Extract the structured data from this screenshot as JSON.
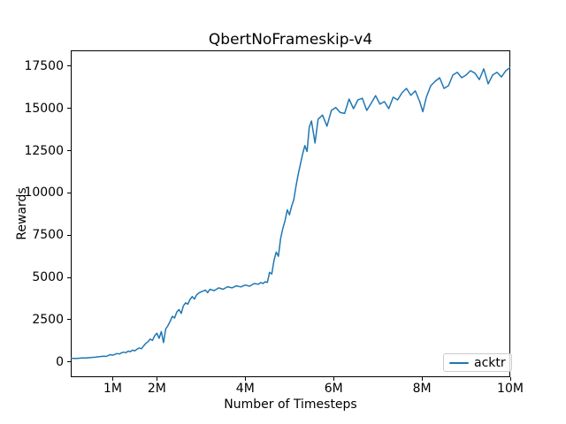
{
  "colors": {
    "background": "#ffffff",
    "line": "#1f77b4",
    "spine": "#000000",
    "text": "#000000",
    "legend_border": "#cccccc"
  },
  "chart_data": {
    "type": "line",
    "title": "QbertNoFrameskip-v4",
    "xlabel": "Number of Timesteps",
    "ylabel": "Rewards",
    "x_unit": "millions of timesteps",
    "grid": false,
    "xlim": [
      0.05,
      10.0
    ],
    "ylim": [
      -900,
      18430
    ],
    "x_ticks": [
      {
        "value": 1,
        "label": "1M"
      },
      {
        "value": 2,
        "label": "2M"
      },
      {
        "value": 4,
        "label": "4M"
      },
      {
        "value": 6,
        "label": "6M"
      },
      {
        "value": 8,
        "label": "8M"
      },
      {
        "value": 10,
        "label": "10M"
      }
    ],
    "y_ticks": [
      {
        "value": 0,
        "label": "0"
      },
      {
        "value": 2500,
        "label": "2500"
      },
      {
        "value": 5000,
        "label": "5000"
      },
      {
        "value": 7500,
        "label": "7500"
      },
      {
        "value": 10000,
        "label": "10000"
      },
      {
        "value": 12500,
        "label": "12500"
      },
      {
        "value": 15000,
        "label": "15000"
      },
      {
        "value": 17500,
        "label": "17500"
      }
    ],
    "legend": {
      "position": "lower right",
      "entries": [
        {
          "label": "acktr",
          "color": "#1f77b4"
        }
      ]
    },
    "series": [
      {
        "name": "acktr",
        "color": "#1f77b4",
        "x": [
          0.05,
          0.1,
          0.2,
          0.3,
          0.4,
          0.5,
          0.6,
          0.7,
          0.8,
          0.85,
          0.9,
          0.95,
          1.0,
          1.05,
          1.1,
          1.15,
          1.2,
          1.25,
          1.3,
          1.35,
          1.4,
          1.45,
          1.5,
          1.55,
          1.6,
          1.65,
          1.7,
          1.75,
          1.8,
          1.85,
          1.9,
          1.95,
          2.0,
          2.05,
          2.1,
          2.15,
          2.2,
          2.25,
          2.3,
          2.35,
          2.4,
          2.45,
          2.5,
          2.55,
          2.6,
          2.65,
          2.7,
          2.75,
          2.8,
          2.85,
          2.9,
          2.95,
          3.0,
          3.1,
          3.15,
          3.2,
          3.3,
          3.4,
          3.5,
          3.6,
          3.7,
          3.8,
          3.9,
          4.0,
          4.1,
          4.2,
          4.3,
          4.35,
          4.4,
          4.45,
          4.5,
          4.55,
          4.6,
          4.65,
          4.7,
          4.75,
          4.8,
          4.85,
          4.9,
          4.95,
          5.0,
          5.05,
          5.1,
          5.15,
          5.2,
          5.25,
          5.3,
          5.35,
          5.4,
          5.45,
          5.5,
          5.58,
          5.65,
          5.75,
          5.85,
          5.95,
          6.05,
          6.15,
          6.25,
          6.35,
          6.45,
          6.55,
          6.65,
          6.75,
          6.85,
          6.95,
          7.05,
          7.15,
          7.25,
          7.35,
          7.45,
          7.55,
          7.65,
          7.75,
          7.85,
          7.95,
          8.02,
          8.1,
          8.2,
          8.3,
          8.4,
          8.5,
          8.6,
          8.7,
          8.8,
          8.9,
          9.0,
          9.1,
          9.2,
          9.3,
          9.4,
          9.5,
          9.6,
          9.7,
          9.8,
          9.9,
          10.0
        ],
        "y": [
          230,
          210,
          215,
          235,
          240,
          265,
          280,
          310,
          345,
          330,
          385,
          430,
          400,
          450,
          500,
          470,
          540,
          580,
          550,
          640,
          610,
          700,
          660,
          750,
          830,
          780,
          950,
          1100,
          1200,
          1350,
          1280,
          1550,
          1700,
          1400,
          1800,
          1150,
          1950,
          2150,
          2400,
          2700,
          2600,
          2950,
          3100,
          2870,
          3320,
          3500,
          3420,
          3700,
          3870,
          3720,
          3980,
          4080,
          4150,
          4250,
          4100,
          4300,
          4220,
          4380,
          4300,
          4450,
          4380,
          4500,
          4440,
          4550,
          4480,
          4640,
          4600,
          4700,
          4640,
          4750,
          4700,
          5300,
          5200,
          6000,
          6500,
          6250,
          7300,
          7900,
          8350,
          9000,
          8700,
          9200,
          9600,
          10400,
          11100,
          11700,
          12300,
          12800,
          12450,
          13900,
          14250,
          12950,
          14360,
          14600,
          13940,
          14880,
          15050,
          14750,
          14700,
          15550,
          14980,
          15500,
          15600,
          14880,
          15300,
          15750,
          15250,
          15400,
          14980,
          15660,
          15500,
          15920,
          16180,
          15770,
          16030,
          15400,
          14800,
          15660,
          16340,
          16600,
          16810,
          16180,
          16340,
          16970,
          17130,
          16810,
          16970,
          17230,
          17080,
          16700,
          17340,
          16450,
          16970,
          17130,
          16860,
          17230,
          17420
        ]
      }
    ]
  }
}
